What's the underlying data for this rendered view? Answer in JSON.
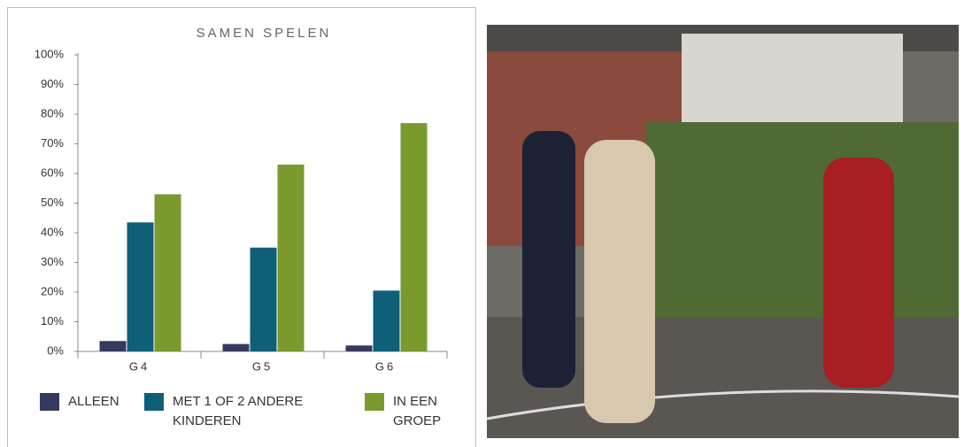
{
  "chart_data": {
    "type": "bar",
    "title": "SAMEN SPELEN",
    "categories": [
      "G4",
      "G5",
      "G6"
    ],
    "series": [
      {
        "name": "ALLEEN",
        "color": "#343a5e",
        "values": [
          3.5,
          2.5,
          2
        ]
      },
      {
        "name": "MET 1 OF 2 ANDERE KINDEREN",
        "color": "#0f5f78",
        "values": [
          43.5,
          35,
          20.5
        ]
      },
      {
        "name": "IN EEN GROEP",
        "color": "#7a9a2e",
        "values": [
          53,
          63,
          77
        ]
      }
    ],
    "ylim": [
      0,
      100
    ],
    "yticks": [
      {
        "value": 0,
        "label": "0%"
      },
      {
        "value": 10,
        "label": "10%"
      },
      {
        "value": 20,
        "label": "20%"
      },
      {
        "value": 30,
        "label": "30%"
      },
      {
        "value": 40,
        "label": "40%"
      },
      {
        "value": 50,
        "label": "50%"
      },
      {
        "value": 60,
        "label": "60%"
      },
      {
        "value": 70,
        "label": "70%"
      },
      {
        "value": 80,
        "label": "80%"
      },
      {
        "value": 90,
        "label": "90%"
      },
      {
        "value": 100,
        "label": "100%"
      }
    ],
    "grid": false
  }
}
